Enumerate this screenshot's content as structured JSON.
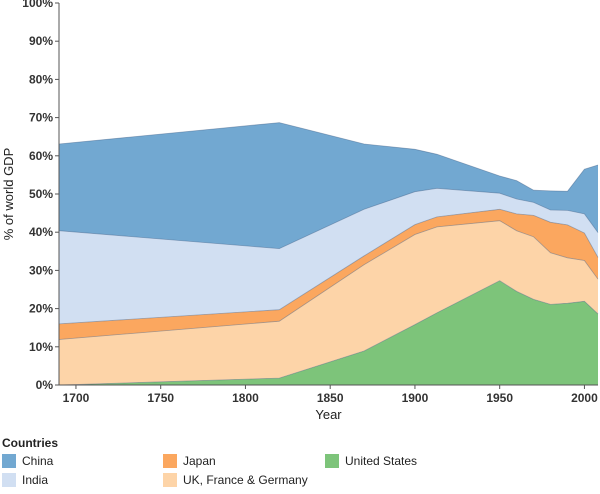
{
  "chart_data": {
    "type": "area",
    "stacked": true,
    "title": "",
    "xlabel": "Year",
    "ylabel": "% of world GDP",
    "xlim": [
      1690,
      2008
    ],
    "ylim": [
      0,
      100
    ],
    "x_ticks": [
      1700,
      1750,
      1800,
      1850,
      1900,
      1950,
      2000
    ],
    "y_ticks": [
      "0%",
      "10%",
      "20%",
      "30%",
      "40%",
      "50%",
      "60%",
      "70%",
      "80%",
      "90%",
      "100%"
    ],
    "x": [
      1690,
      1820,
      1870,
      1900,
      1913,
      1950,
      1960,
      1970,
      1980,
      1990,
      2000,
      2008
    ],
    "series": [
      {
        "name": "United States",
        "color": "#7dc47a",
        "values": [
          0,
          1.8,
          8.9,
          15.8,
          18.9,
          27.3,
          24.5,
          22.4,
          21.1,
          21.4,
          21.9,
          18.6
        ]
      },
      {
        "name": "UK, France & Germany",
        "color": "#fdd4a8",
        "values": [
          11.9,
          14.9,
          22.6,
          23.6,
          22.5,
          15.7,
          15.9,
          16.4,
          13.5,
          11.9,
          10.7,
          9.1
        ]
      },
      {
        "name": "Japan",
        "color": "#fba75f",
        "values": [
          4.1,
          3.0,
          2.3,
          2.6,
          2.6,
          3.0,
          4.4,
          5.6,
          8.0,
          8.6,
          7.2,
          5.7
        ]
      },
      {
        "name": "India",
        "color": "#d1dff2",
        "values": [
          24.4,
          16.0,
          12.2,
          8.6,
          7.5,
          4.2,
          3.9,
          3.4,
          3.2,
          3.8,
          5.0,
          6.5
        ]
      },
      {
        "name": "China",
        "color": "#72a8d1",
        "values": [
          22.7,
          33.0,
          17.1,
          11.1,
          8.9,
          4.5,
          4.8,
          3.2,
          5.0,
          5.0,
          11.7,
          17.7
        ]
      }
    ]
  },
  "legend": {
    "title": "Countries",
    "items": [
      {
        "label": "China",
        "color": "#72a8d1"
      },
      {
        "label": "India",
        "color": "#d1dff2"
      },
      {
        "label": "Japan",
        "color": "#fba75f"
      },
      {
        "label": "UK, France & Germany",
        "color": "#fdd4a8"
      },
      {
        "label": "United States",
        "color": "#7dc47a"
      }
    ]
  }
}
